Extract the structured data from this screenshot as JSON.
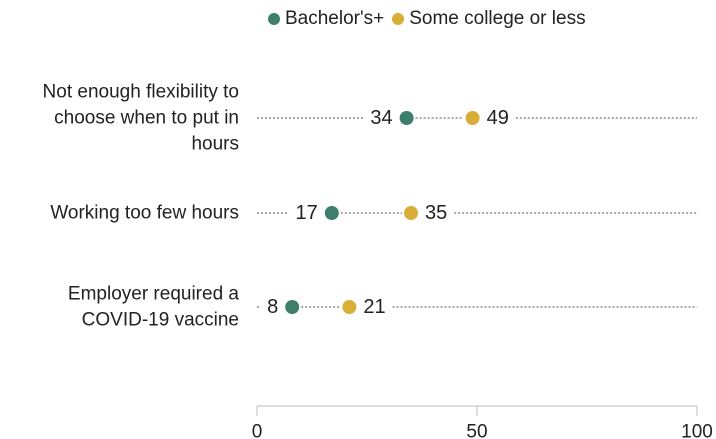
{
  "colors": {
    "bachelors": "#3d7f6b",
    "some_college": "#d8ad38",
    "dotline": "#a7a7a7",
    "axis": "#bdbdbd",
    "text": "#222222"
  },
  "legend": [
    {
      "label": "Bachelor's+",
      "color": "#3d7f6b"
    },
    {
      "label": "Some college or less",
      "color": "#d8ad38"
    }
  ],
  "chart_data": {
    "type": "dot",
    "x": [
      0,
      100
    ],
    "xlim": [
      0,
      100
    ],
    "xticks": [
      0,
      50,
      100
    ],
    "grid": false,
    "legend_position": "top",
    "categories": [
      "Not enough flexibility to choose when to put in hours",
      "Working too few hours",
      "Employer required a COVID-19 vaccine"
    ],
    "category_lines": [
      [
        "Not enough flexibility to",
        "choose when to put in",
        "hours"
      ],
      [
        "Working too few hours"
      ],
      [
        "Employer required a",
        "COVID-19 vaccine"
      ]
    ],
    "series": [
      {
        "name": "Bachelor's+",
        "values": [
          34,
          17,
          8
        ]
      },
      {
        "name": "Some college or less",
        "values": [
          49,
          35,
          21
        ]
      }
    ]
  }
}
